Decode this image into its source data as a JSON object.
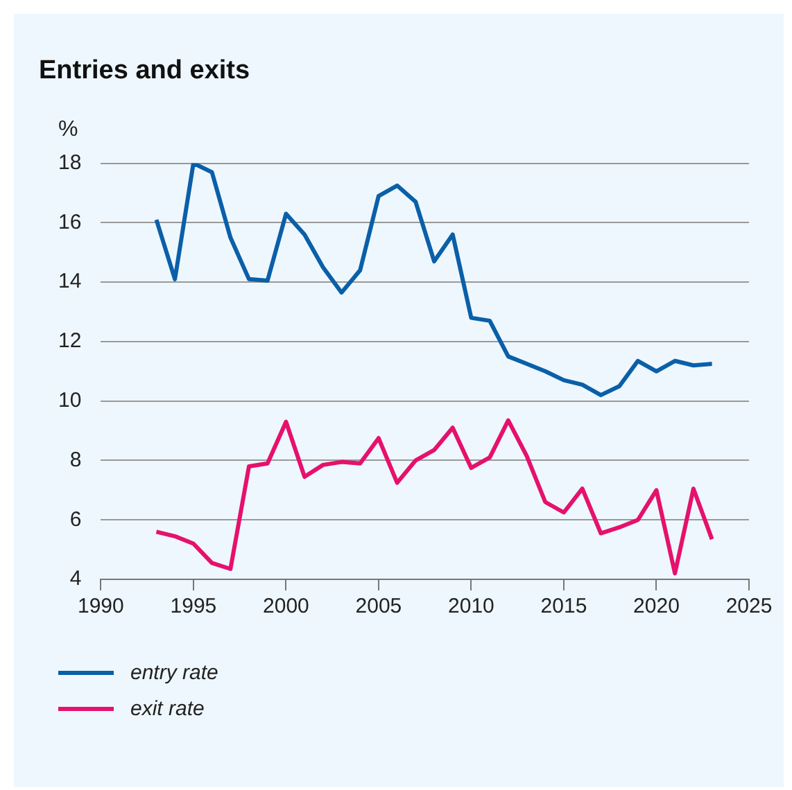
{
  "chart_data": {
    "type": "line",
    "title": "Entries and exits",
    "ylabel": "%",
    "x": [
      1993,
      1994,
      1995,
      1996,
      1997,
      1998,
      1999,
      2000,
      2001,
      2002,
      2003,
      2004,
      2005,
      2006,
      2007,
      2008,
      2009,
      2010,
      2011,
      2012,
      2013,
      2014,
      2015,
      2016,
      2017,
      2018,
      2019,
      2020,
      2021,
      2022,
      2023
    ],
    "series": [
      {
        "name": "entry rate",
        "color": "#0a5fa8",
        "values": [
          16.1,
          14.1,
          18.0,
          17.7,
          15.5,
          14.1,
          14.05,
          16.3,
          15.6,
          14.5,
          13.65,
          14.4,
          16.9,
          17.25,
          16.7,
          14.7,
          15.6,
          12.8,
          12.7,
          11.5,
          11.25,
          11.0,
          10.7,
          10.55,
          10.2,
          10.5,
          11.35,
          11.0,
          11.35,
          11.2,
          11.25
        ]
      },
      {
        "name": "exit rate",
        "color": "#e5116d",
        "values": [
          5.6,
          5.45,
          5.2,
          4.55,
          4.35,
          7.8,
          7.9,
          9.3,
          7.45,
          7.85,
          7.95,
          7.9,
          8.75,
          7.25,
          8.0,
          8.35,
          9.1,
          7.75,
          8.1,
          9.35,
          8.15,
          6.6,
          6.25,
          7.05,
          5.55,
          5.75,
          6.0,
          7.0,
          4.2,
          7.05,
          5.35
        ]
      }
    ],
    "xlim": [
      1990,
      2025
    ],
    "xticks": [
      1990,
      1995,
      2000,
      2005,
      2010,
      2015,
      2020,
      2025
    ],
    "ylim": [
      4,
      18
    ],
    "yticks": [
      4,
      6,
      8,
      10,
      12,
      14,
      16,
      18
    ],
    "grid": "y",
    "legend": "bottom left",
    "marker": "none",
    "line_style": "solid"
  }
}
